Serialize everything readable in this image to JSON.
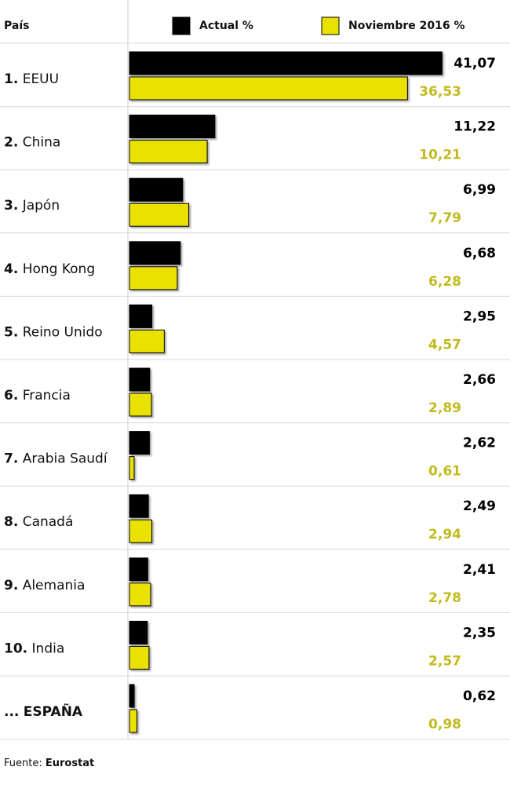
{
  "chart_data": {
    "type": "bar",
    "orientation": "horizontal",
    "category_header": "País",
    "ranks": [
      "1.",
      "2.",
      "3.",
      "4.",
      "5.",
      "6.",
      "7.",
      "8.",
      "9.",
      "10.",
      "..."
    ],
    "categories": [
      "EEUU",
      "China",
      "Japón",
      "Hong Kong",
      "Reino Unido",
      "Francia",
      "Arabia Saudí",
      "Canadá",
      "Alemania",
      "India",
      "ESPAÑA"
    ],
    "highlight_index": 10,
    "series": [
      {
        "name": "Actual %",
        "color": "#000000",
        "label_color": "#000000",
        "values": [
          41.07,
          11.22,
          6.99,
          6.68,
          2.95,
          2.66,
          2.62,
          2.49,
          2.41,
          2.35,
          0.62
        ],
        "value_labels": [
          "41,07",
          "11,22",
          "6,99",
          "6,68",
          "2,95",
          "2,66",
          "2,62",
          "2,49",
          "2,41",
          "2,35",
          "0,62"
        ]
      },
      {
        "name": "Noviembre 2016 %",
        "color": "#e9e200",
        "label_color": "#c2bb1f",
        "values": [
          36.53,
          10.21,
          7.79,
          6.28,
          4.57,
          2.89,
          0.61,
          2.94,
          2.78,
          2.57,
          0.98
        ],
        "value_labels": [
          "36,53",
          "10,21",
          "7,79",
          "6,28",
          "4,57",
          "2,89",
          "0,61",
          "2,94",
          "2,78",
          "2,57",
          "0,98"
        ]
      }
    ],
    "xlim": [
      0,
      50
    ],
    "source_label": "Fuente:",
    "source": "Eurostat"
  }
}
